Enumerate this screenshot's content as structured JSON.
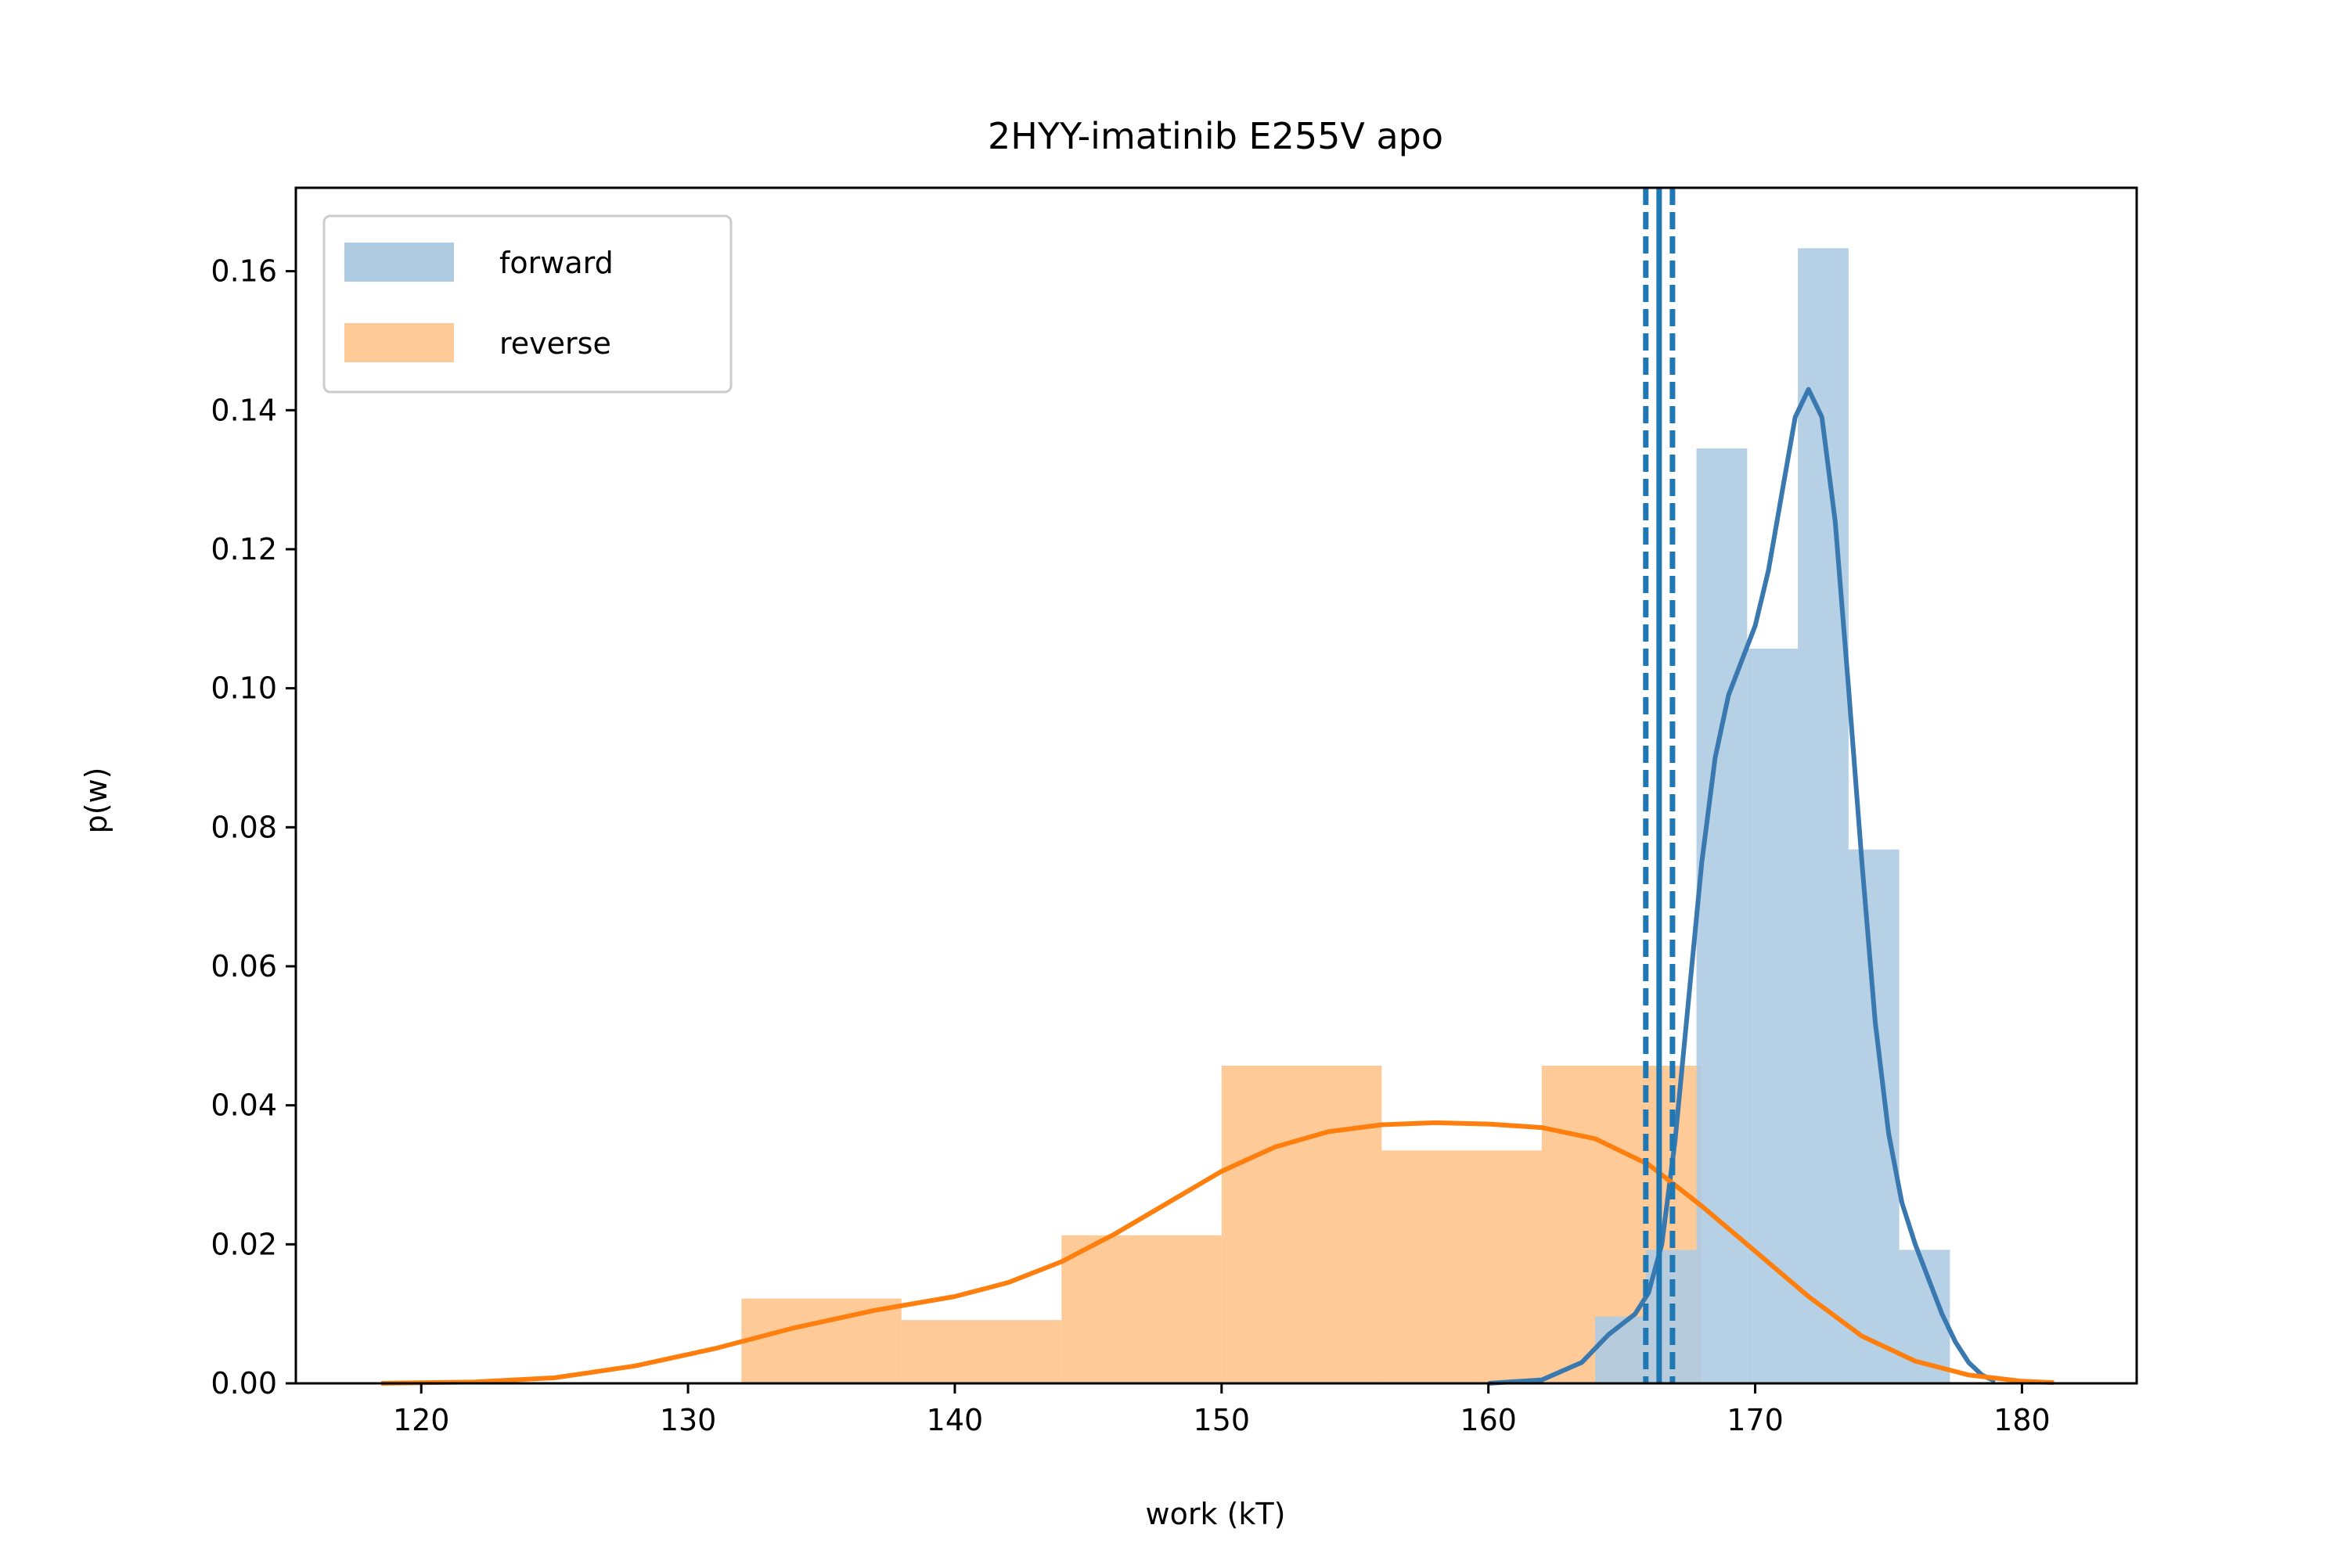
{
  "chart_data": {
    "type": "histogram",
    "title": "2HYY-imatinib E255V apo",
    "xlabel": "work (kT)",
    "ylabel": "p(w)",
    "xlim": [
      115.3,
      184.3
    ],
    "ylim": [
      0,
      0.172
    ],
    "xticks": [
      120,
      130,
      140,
      150,
      160,
      170,
      180
    ],
    "yticks": [
      0.0,
      0.02,
      0.04,
      0.06,
      0.08,
      0.1,
      0.12,
      0.14,
      0.16
    ],
    "xtick_labels": [
      "120",
      "130",
      "140",
      "150",
      "160",
      "170",
      "180"
    ],
    "ytick_labels": [
      "0.00",
      "0.02",
      "0.04",
      "0.06",
      "0.08",
      "0.10",
      "0.12",
      "0.14",
      "0.16"
    ],
    "legend": {
      "placement": "upper left",
      "entries": [
        "forward",
        "reverse"
      ]
    },
    "colors": {
      "forward_bar": "#aecbe2",
      "forward_line": "#3a78b0",
      "reverse_bar": "#fdca98",
      "reverse_line": "#ff7f0e",
      "overlap_bar": "#cab396",
      "vline": "#1f77b4"
    },
    "series": [
      {
        "name": "forward",
        "bins": [
          [
            164.0,
            165.9,
            0.0096
          ],
          [
            165.9,
            167.8,
            0.0192
          ],
          [
            167.8,
            169.7,
            0.1345
          ],
          [
            169.7,
            171.6,
            0.1057
          ],
          [
            171.6,
            173.5,
            0.1633
          ],
          [
            173.5,
            175.4,
            0.0768
          ],
          [
            175.4,
            177.3,
            0.0192
          ]
        ],
        "kde": [
          [
            160.0,
            0.0
          ],
          [
            162.0,
            0.0005
          ],
          [
            163.5,
            0.003
          ],
          [
            164.5,
            0.007
          ],
          [
            165.5,
            0.01
          ],
          [
            166.0,
            0.013
          ],
          [
            166.5,
            0.02
          ],
          [
            167.0,
            0.035
          ],
          [
            167.5,
            0.055
          ],
          [
            168.0,
            0.075
          ],
          [
            168.5,
            0.09
          ],
          [
            169.0,
            0.099
          ],
          [
            169.5,
            0.104
          ],
          [
            170.0,
            0.109
          ],
          [
            170.5,
            0.117
          ],
          [
            171.0,
            0.128
          ],
          [
            171.5,
            0.139
          ],
          [
            172.0,
            0.143
          ],
          [
            172.5,
            0.139
          ],
          [
            173.0,
            0.124
          ],
          [
            173.5,
            0.1
          ],
          [
            174.0,
            0.075
          ],
          [
            174.5,
            0.052
          ],
          [
            175.0,
            0.036
          ],
          [
            175.5,
            0.026
          ],
          [
            176.0,
            0.02
          ],
          [
            176.5,
            0.015
          ],
          [
            177.0,
            0.01
          ],
          [
            177.5,
            0.006
          ],
          [
            178.0,
            0.003
          ],
          [
            178.5,
            0.0012
          ],
          [
            179.0,
            0.0003
          ]
        ],
        "vlines": {
          "mean": 166.4,
          "lower": 165.9,
          "upper": 166.9
        }
      },
      {
        "name": "reverse",
        "bins": [
          [
            132.0,
            138.0,
            0.0122
          ],
          [
            138.0,
            144.0,
            0.0091
          ],
          [
            144.0,
            150.0,
            0.0213
          ],
          [
            150.0,
            156.0,
            0.0457
          ],
          [
            156.0,
            162.0,
            0.0335
          ],
          [
            162.0,
            168.0,
            0.0457
          ]
        ],
        "kde": [
          [
            118.5,
            0.0
          ],
          [
            122.0,
            0.0002
          ],
          [
            125.0,
            0.0008
          ],
          [
            128.0,
            0.0025
          ],
          [
            131.0,
            0.005
          ],
          [
            134.0,
            0.008
          ],
          [
            137.0,
            0.0105
          ],
          [
            140.0,
            0.0125
          ],
          [
            142.0,
            0.0145
          ],
          [
            144.0,
            0.0175
          ],
          [
            146.0,
            0.0215
          ],
          [
            148.0,
            0.026
          ],
          [
            150.0,
            0.0305
          ],
          [
            152.0,
            0.034
          ],
          [
            154.0,
            0.0362
          ],
          [
            156.0,
            0.0372
          ],
          [
            158.0,
            0.0375
          ],
          [
            160.0,
            0.0373
          ],
          [
            162.0,
            0.0368
          ],
          [
            164.0,
            0.0352
          ],
          [
            166.0,
            0.0315
          ],
          [
            168.0,
            0.0255
          ],
          [
            170.0,
            0.019
          ],
          [
            172.0,
            0.0125
          ],
          [
            174.0,
            0.0068
          ],
          [
            176.0,
            0.0032
          ],
          [
            178.0,
            0.0012
          ],
          [
            180.0,
            0.0003
          ],
          [
            181.2,
            0.0001
          ]
        ]
      }
    ]
  }
}
